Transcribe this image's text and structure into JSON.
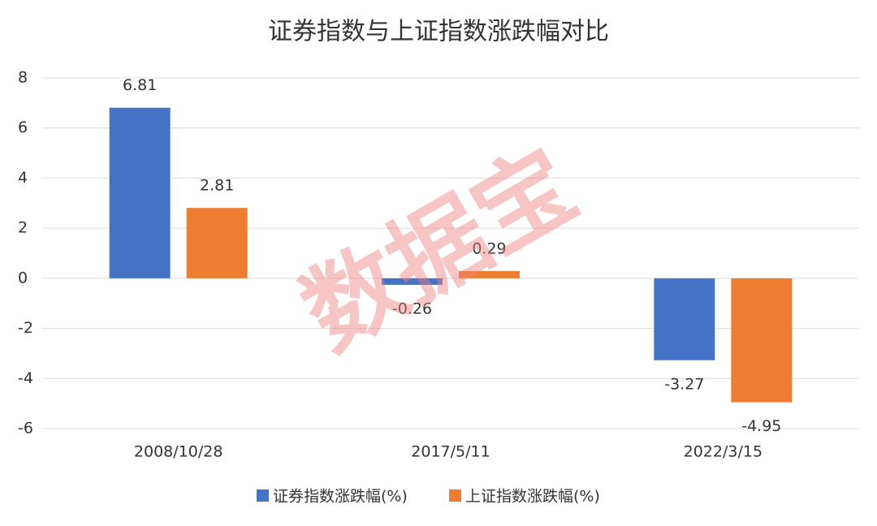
{
  "chart_data": {
    "type": "bar",
    "title": "证券指数与上证指数涨跌幅对比",
    "categories": [
      "2008/10/28",
      "2017/5/11",
      "2022/3/15"
    ],
    "series": [
      {
        "name": "证券指数涨跌幅(%)",
        "color": "#4472c4",
        "values": [
          6.81,
          -0.26,
          -3.27
        ]
      },
      {
        "name": "上证指数涨跌幅(%)",
        "color": "#ed7d31",
        "values": [
          2.81,
          0.29,
          -4.95
        ]
      }
    ],
    "ylim": [
      -6,
      8
    ],
    "yticks": [
      -6,
      -4,
      -2,
      0,
      2,
      4,
      6,
      8
    ],
    "grid": true,
    "legend": "bottom",
    "watermark": "数据宝"
  }
}
